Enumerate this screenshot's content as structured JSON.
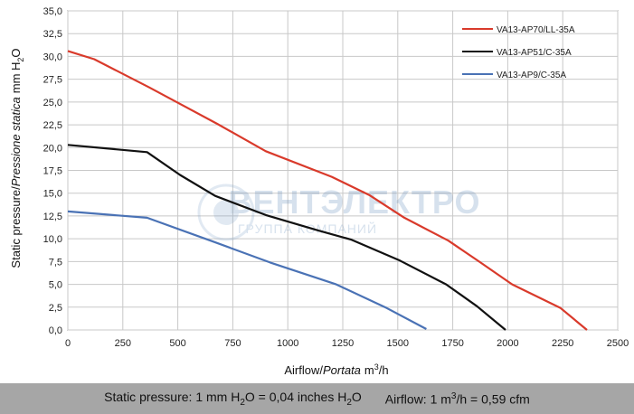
{
  "chart_data": {
    "type": "line",
    "xlabel": {
      "main": "Airflow/",
      "italic": "Portata",
      "unit_pre": "m",
      "unit_sup": "3",
      "unit_post": "/h"
    },
    "ylabel": {
      "main": "Static pressure/",
      "italic": "Pressione statica",
      "unit_pre": "mm  H",
      "unit_sub": "2",
      "unit_post": "O"
    },
    "xlim": [
      0,
      2500
    ],
    "ylim": [
      0,
      35
    ],
    "xticks": [
      0,
      250,
      500,
      750,
      1000,
      1250,
      1500,
      1750,
      2000,
      2250,
      2500
    ],
    "xtick_labels": [
      "0",
      "250",
      "500",
      "750",
      "1000",
      "1250",
      "1500",
      "1750",
      "2000",
      "2250",
      "2500"
    ],
    "yticks": [
      0,
      2.5,
      5,
      7.5,
      10,
      12.5,
      15,
      17.5,
      20,
      22.5,
      25,
      27.5,
      30,
      32.5,
      35
    ],
    "ytick_labels": [
      "0,0",
      "2,5",
      "5,0",
      "7,5",
      "10,0",
      "12,5",
      "15,0",
      "17,5",
      "20,0",
      "22,5",
      "25,0",
      "27,5",
      "30,0",
      "32,5",
      "35,0"
    ],
    "grid": true,
    "legend_position": "top-right",
    "series": [
      {
        "name": "VA13-AP70/LL-35A",
        "color": "#d93a2b",
        "points": [
          [
            0,
            30.6
          ],
          [
            120,
            29.7
          ],
          [
            370,
            26.6
          ],
          [
            680,
            22.6
          ],
          [
            900,
            19.6
          ],
          [
            1200,
            16.8
          ],
          [
            1370,
            14.8
          ],
          [
            1530,
            12.3
          ],
          [
            1730,
            9.8
          ],
          [
            1870,
            7.5
          ],
          [
            2020,
            5.0
          ],
          [
            2240,
            2.4
          ],
          [
            2360,
            0.0
          ]
        ]
      },
      {
        "name": "VA13-AP51/C-35A",
        "color": "#111111",
        "points": [
          [
            0,
            20.3
          ],
          [
            360,
            19.5
          ],
          [
            510,
            17.0
          ],
          [
            670,
            14.7
          ],
          [
            900,
            12.6
          ],
          [
            1140,
            10.9
          ],
          [
            1290,
            9.9
          ],
          [
            1510,
            7.6
          ],
          [
            1720,
            5.0
          ],
          [
            1860,
            2.6
          ],
          [
            1990,
            0.0
          ]
        ]
      },
      {
        "name": "VA13-AP9/C-35A",
        "color": "#4a72b5",
        "points": [
          [
            0,
            13.0
          ],
          [
            360,
            12.3
          ],
          [
            660,
            9.7
          ],
          [
            920,
            7.4
          ],
          [
            1220,
            5.0
          ],
          [
            1450,
            2.4
          ],
          [
            1630,
            0.1
          ]
        ]
      }
    ],
    "watermark": {
      "brand": "ВЕНТЭЛЕКТРО",
      "tagline": "ГРУППА КОМПАНИЙ"
    }
  },
  "footer": {
    "static_label": "Static pressure: 1 mm H",
    "static_sub1": "2",
    "static_mid": "O = 0,04 inches H",
    "static_sub2": "2",
    "static_end": "O",
    "airflow_label": "Airflow: 1 m",
    "airflow_sup": "3",
    "airflow_end": "/h = 0,59 cfm"
  }
}
